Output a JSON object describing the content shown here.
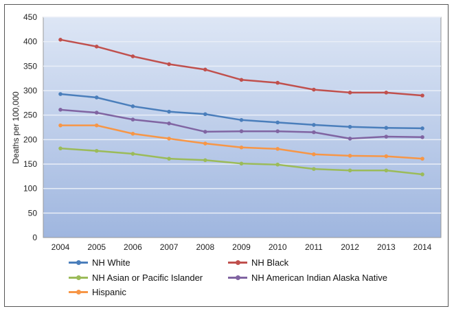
{
  "chart_data": {
    "type": "line",
    "title": "",
    "xlabel": "",
    "ylabel": "Deaths per 100,000",
    "ylim": [
      0,
      450
    ],
    "yticks": [
      "0",
      "50",
      "100",
      "150",
      "200",
      "250",
      "300",
      "350",
      "400",
      "450"
    ],
    "x": [
      "2004",
      "2005",
      "2006",
      "2007",
      "2008",
      "2009",
      "2010",
      "2011",
      "2012",
      "2013",
      "2014"
    ],
    "grid": true,
    "legend_position": "bottom",
    "series": [
      {
        "name": "NH White",
        "color": "#4a7ebb",
        "values": [
          293,
          286,
          268,
          257,
          252,
          240,
          235,
          230,
          226,
          224,
          223
        ]
      },
      {
        "name": "NH Black",
        "color": "#c0504d",
        "values": [
          404,
          390,
          370,
          354,
          343,
          322,
          316,
          302,
          296,
          296,
          290
        ]
      },
      {
        "name": "NH Asian or Pacific Islander",
        "color": "#9bbb59",
        "values": [
          182,
          177,
          171,
          161,
          158,
          151,
          149,
          140,
          137,
          137,
          129
        ]
      },
      {
        "name": "NH American Indian Alaska Native",
        "color": "#8064a2",
        "values": [
          261,
          255,
          241,
          233,
          216,
          217,
          217,
          215,
          202,
          206,
          205
        ]
      },
      {
        "name": "Hispanic",
        "color": "#f79646",
        "values": [
          229,
          229,
          212,
          202,
          192,
          184,
          181,
          170,
          167,
          166,
          161
        ]
      }
    ]
  }
}
